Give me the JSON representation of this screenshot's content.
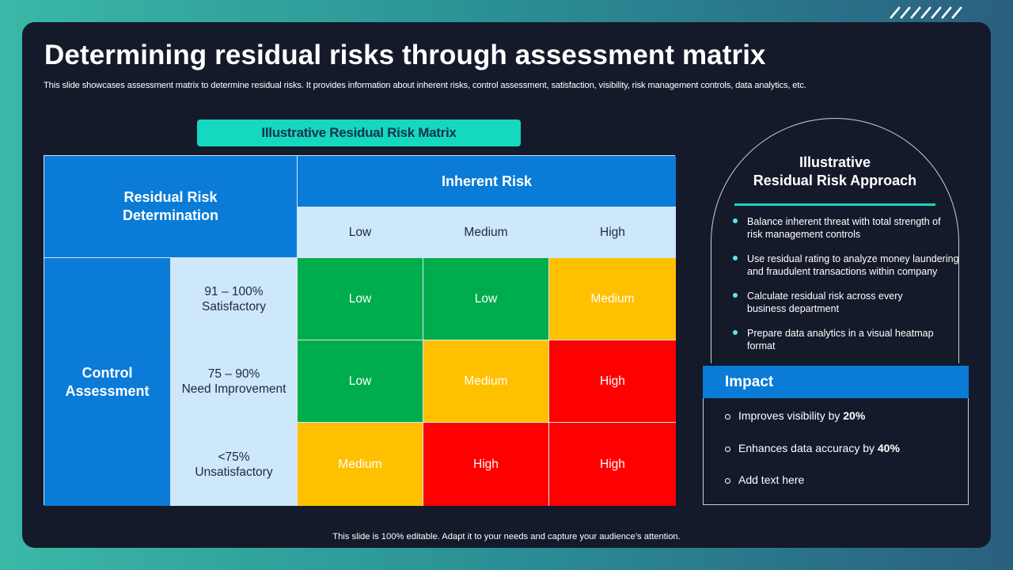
{
  "slide": {
    "title": "Determining residual risks through assessment matrix",
    "subtitle": "This slide showcases assessment matrix to determine residual risks. It provides information about inherent risks, control assessment, satisfaction, visibility, risk management controls, data analytics, etc.",
    "footer": "This slide is 100% editable. Adapt it to your needs and capture your audience’s attention."
  },
  "matrix": {
    "label": "Illustrative Residual Risk Matrix",
    "corner_label": "Residual Risk\nDetermination",
    "inherent_header": "Inherent Risk",
    "inherent_levels": [
      "Low",
      "Medium",
      "High"
    ],
    "control_header": "Control\nAssessment",
    "control_levels": [
      "91 – 100%\nSatisfactory",
      "75 – 90%\nNeed Improvement",
      "<75%\nUnsatisfactory"
    ],
    "cells": [
      [
        "Low",
        "Low",
        "Medium"
      ],
      [
        "Low",
        "Medium",
        "High"
      ],
      [
        "Medium",
        "High",
        "High"
      ]
    ],
    "colors": {
      "Low": "#00ad4d",
      "Medium": "#ffc000",
      "High": "#ff0000"
    }
  },
  "approach": {
    "title": "Illustrative\nResidual Risk Approach",
    "bullets": [
      "Balance inherent threat with total strength of\nrisk management  controls",
      "Use residual rating to analyze money laundering\nand fraudulent transactions within company",
      "Calculate residual risk across every\nbusiness department",
      "Prepare data analytics in a visual heatmap format"
    ]
  },
  "impact": {
    "title": "Impact",
    "items": [
      {
        "text": "Improves visibility by ",
        "bold": "20%"
      },
      {
        "text": "Enhances data accuracy by ",
        "bold": "40%"
      },
      {
        "text": "Add text here",
        "bold": ""
      }
    ]
  }
}
